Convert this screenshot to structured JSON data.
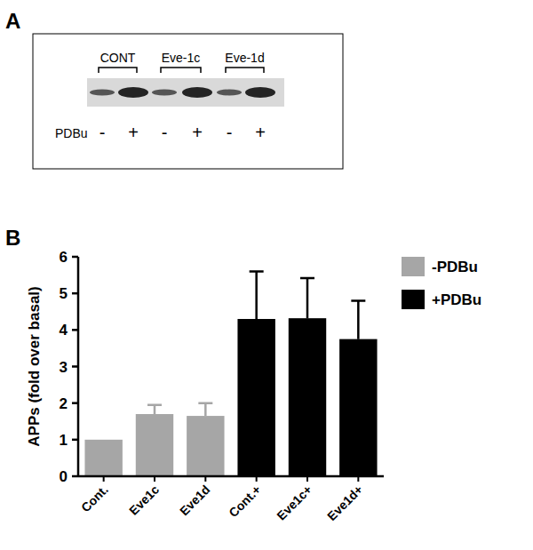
{
  "panel_a": {
    "label": "A",
    "groups": [
      "CONT",
      "Eve-1c",
      "Eve-1d"
    ],
    "treatment": "PDBu",
    "signs": [
      "-",
      "+",
      "-",
      "+",
      "-",
      "+"
    ]
  },
  "chart_data": {
    "type": "bar",
    "panel_label": "B",
    "y_label": "APPs (fold over basal)",
    "categories": [
      "Cont.",
      "Eve1c",
      "Eve1d",
      "Cont.+",
      "Eve1c+",
      "Eve1d+"
    ],
    "series": [
      {
        "name": "-PDBu",
        "color": "#a6a6a6",
        "values": [
          1,
          1.7,
          1.65,
          null,
          null,
          null
        ],
        "errors": [
          null,
          0.25,
          0.35,
          null,
          null,
          null
        ]
      },
      {
        "name": "+PDBu",
        "color": "#000000",
        "values": [
          null,
          null,
          null,
          4.3,
          4.32,
          3.75
        ],
        "errors": [
          null,
          null,
          null,
          1.3,
          1.1,
          1.05
        ]
      }
    ],
    "ylim": [
      0,
      6
    ],
    "yticks": [
      0,
      1,
      2,
      3,
      4,
      5,
      6
    ],
    "grid": false,
    "legend": "upper right"
  }
}
